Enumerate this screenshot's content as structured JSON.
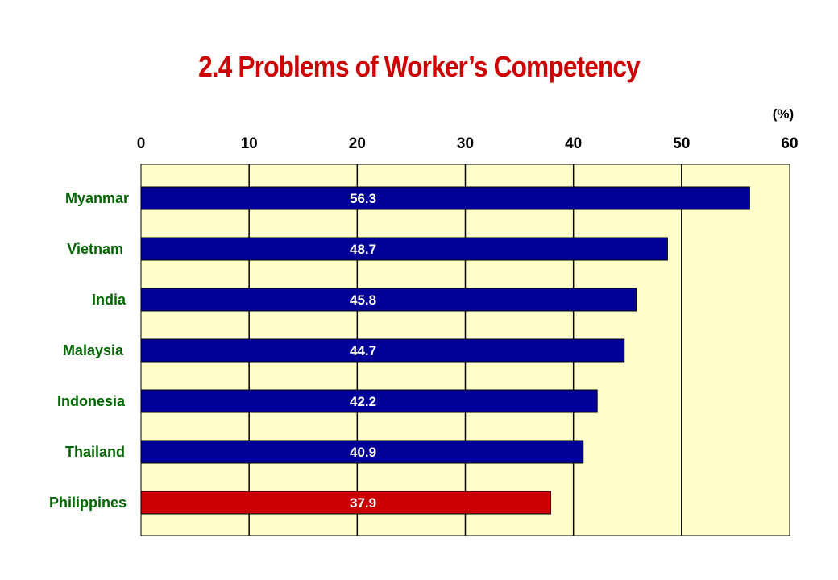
{
  "chart_data": {
    "type": "bar",
    "orientation": "horizontal",
    "title": "2.4 Problems of Worker’s Competency",
    "unit": "(%)",
    "categories": [
      "Myanmar",
      "Vietnam",
      "India",
      "Malaysia",
      "Indonesia",
      "Thailand",
      "Philippines"
    ],
    "values": [
      56.3,
      48.7,
      45.8,
      44.7,
      42.2,
      40.9,
      37.9
    ],
    "bar_colors": [
      "#000099",
      "#000099",
      "#000099",
      "#000099",
      "#000099",
      "#000099",
      "#cc0000"
    ],
    "xlim": [
      0,
      60
    ],
    "xticks": [
      "0",
      "10",
      "20",
      "30",
      "40",
      "50",
      "60"
    ],
    "grid": true,
    "plot_background": "#ffffcc",
    "label_color": "#006600",
    "title_color": "#cc0000"
  }
}
